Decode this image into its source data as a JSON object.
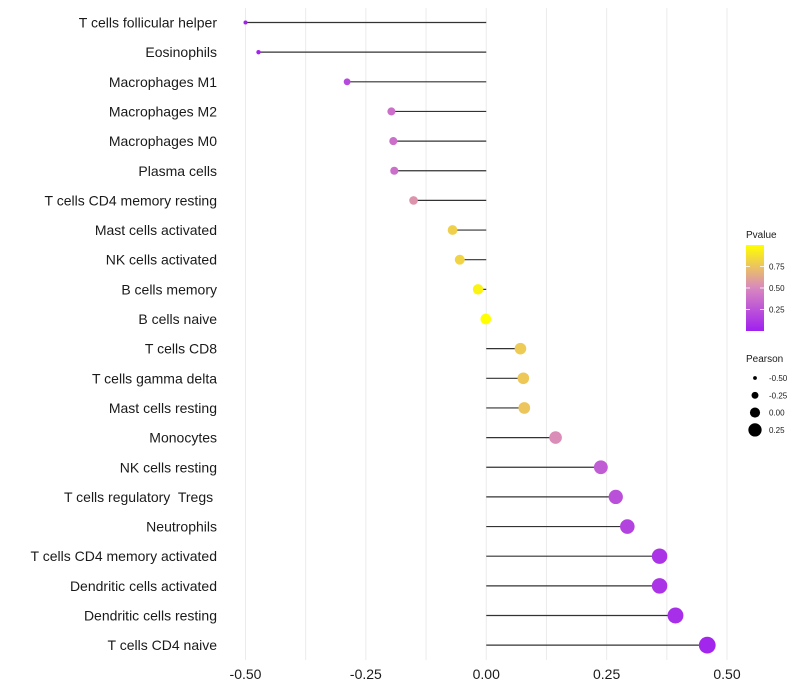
{
  "chart_data": {
    "type": "lollipop",
    "title": "",
    "xlabel": "",
    "ylabel": "",
    "xlim": [
      -0.5,
      0.5
    ],
    "x_ticks": [
      -0.5,
      -0.25,
      0.0,
      0.25,
      0.5
    ],
    "x_tick_labels": [
      "-0.50",
      "-0.25",
      "0.00",
      "0.25",
      "0.50"
    ],
    "grid": true,
    "categories": [
      "T cells follicular helper",
      "Eosinophils",
      "Macrophages M1",
      "Macrophages M2",
      "Macrophages M0",
      "Plasma cells",
      "T cells CD4 memory resting",
      "Mast cells activated",
      "NK cells activated",
      "B cells memory",
      "B cells naive",
      "T cells CD8",
      "T cells gamma delta",
      "Mast cells resting",
      "Monocytes",
      "NK cells resting",
      "T cells regulatory  Tregs ",
      "Neutrophils",
      "T cells CD4 memory activated",
      "Dendritic cells activated",
      "Dendritic cells resting",
      "T cells CD4 naive"
    ],
    "series": [
      {
        "name": "Pearson",
        "values": [
          -0.5,
          -0.473,
          -0.289,
          -0.197,
          -0.193,
          -0.191,
          -0.151,
          -0.07,
          -0.055,
          -0.017,
          -0.001,
          0.071,
          0.077,
          0.079,
          0.144,
          0.238,
          0.269,
          0.293,
          0.36,
          0.36,
          0.393,
          0.459
        ]
      },
      {
        "name": "Pvalue",
        "values": [
          0.01,
          0.02,
          0.2,
          0.38,
          0.38,
          0.38,
          0.55,
          0.8,
          0.82,
          0.95,
          1.0,
          0.78,
          0.77,
          0.76,
          0.52,
          0.29,
          0.23,
          0.17,
          0.1,
          0.1,
          0.07,
          0.03
        ]
      }
    ],
    "encodings": {
      "x": "Pearson",
      "size": "Pearson",
      "color": "Pvalue"
    },
    "legend": {
      "placement": "right",
      "color": {
        "title": "Pvalue",
        "ticks": [
          0.25,
          0.5,
          0.75
        ],
        "tick_labels": [
          "0.25",
          "0.50",
          "0.75"
        ],
        "range": [
          0.0,
          1.0
        ],
        "low_color": "#A020F0",
        "mid_color": "#D888BF",
        "high_color": "#FFFF00"
      },
      "size": {
        "title": "Pearson",
        "values": [
          -0.5,
          -0.25,
          0.0,
          0.25
        ],
        "labels": [
          "-0.50",
          "-0.25",
          "0.00",
          "0.25"
        ]
      }
    },
    "colors": {
      "segment": "#333333",
      "grid": "#EBEBEB",
      "size_legend_dot": "#000000"
    }
  }
}
